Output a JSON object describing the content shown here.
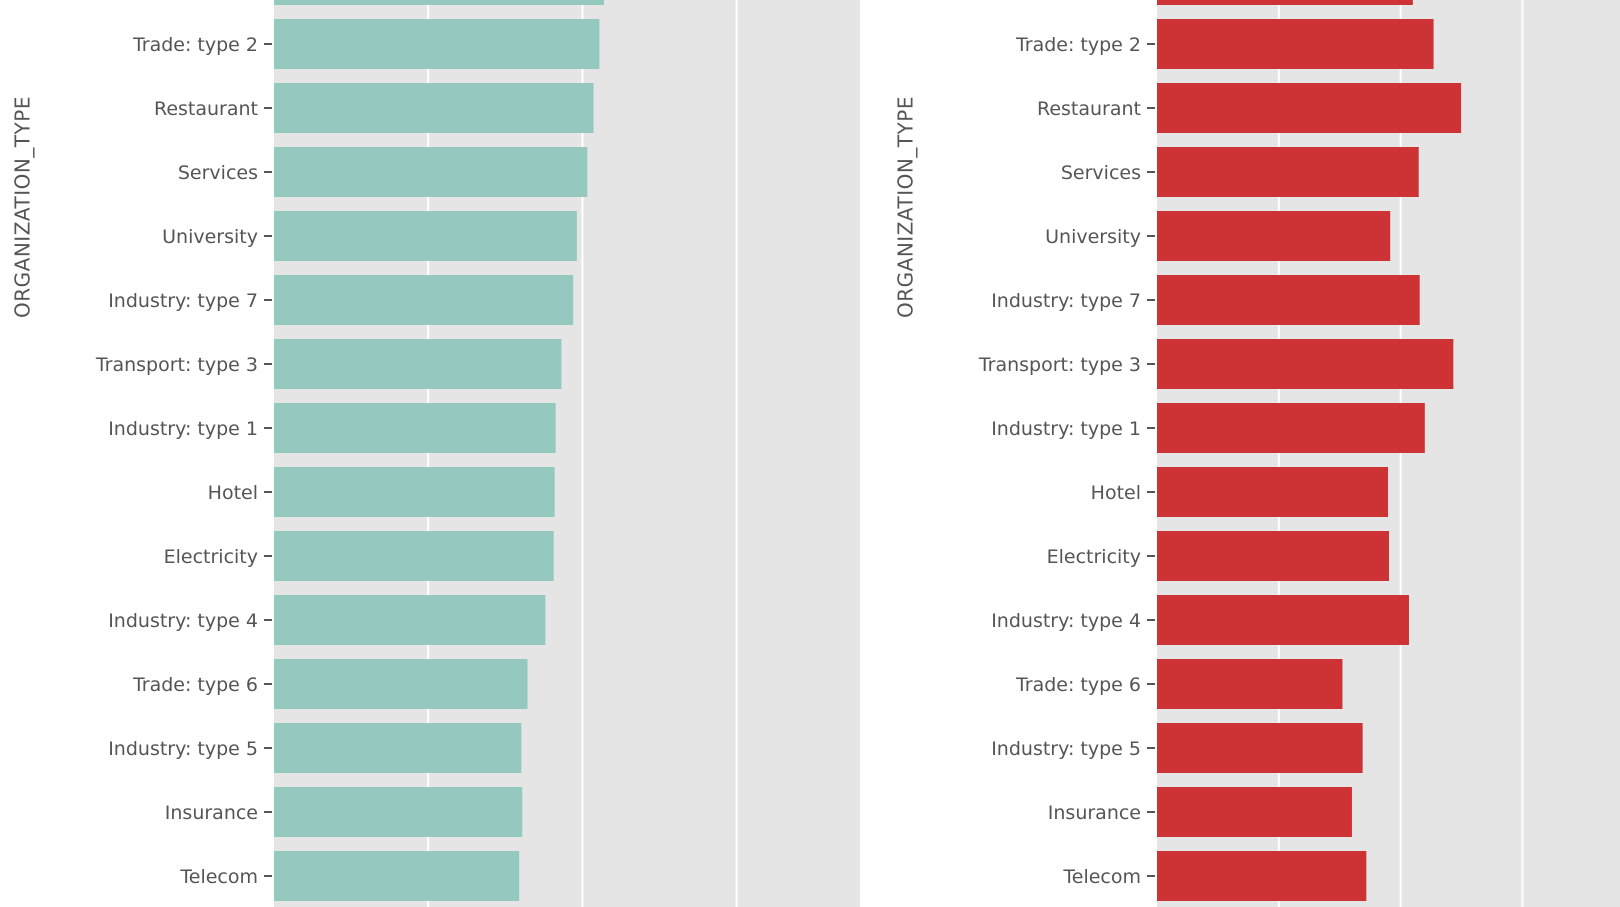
{
  "chart_data": [
    {
      "type": "bar",
      "orientation": "horizontal",
      "ylabel": "ORGANIZATION_TYPE",
      "xlabel": "",
      "color": "#95c9bf",
      "background": "#e5e5e5",
      "grid": true,
      "xlim": [
        0,
        0.19
      ],
      "categories": [
        "Trade: type 2",
        "Restaurant",
        "Services",
        "University",
        "Industry: type 7",
        "Transport: type 3",
        "Industry: type 1",
        "Hotel",
        "Electricity",
        "Industry: type 4",
        "Trade: type 6",
        "Industry: type 5",
        "Insurance",
        "Telecom"
      ],
      "values": [
        0.1055,
        0.1036,
        0.1016,
        0.0982,
        0.097,
        0.0932,
        0.0913,
        0.091,
        0.0907,
        0.088,
        0.0822,
        0.0802,
        0.0805,
        0.0795
      ],
      "partial_bar_value": 0.107
    },
    {
      "type": "bar",
      "orientation": "horizontal",
      "ylabel": "ORGANIZATION_TYPE",
      "xlabel": "",
      "color": "#cd3235",
      "background": "#e5e5e5",
      "grid": true,
      "xlim": [
        0,
        0.19
      ],
      "categories": [
        "Trade: type 2",
        "Restaurant",
        "Services",
        "University",
        "Industry: type 7",
        "Transport: type 3",
        "Industry: type 1",
        "Hotel",
        "Electricity",
        "Industry: type 4",
        "Trade: type 6",
        "Industry: type 5",
        "Insurance",
        "Telecom"
      ],
      "values": [
        0.1135,
        0.1248,
        0.1074,
        0.0957,
        0.1078,
        0.1216,
        0.1099,
        0.0948,
        0.0952,
        0.1034,
        0.0761,
        0.0844,
        0.08,
        0.0859
      ],
      "partial_bar_value": 0.105
    }
  ]
}
